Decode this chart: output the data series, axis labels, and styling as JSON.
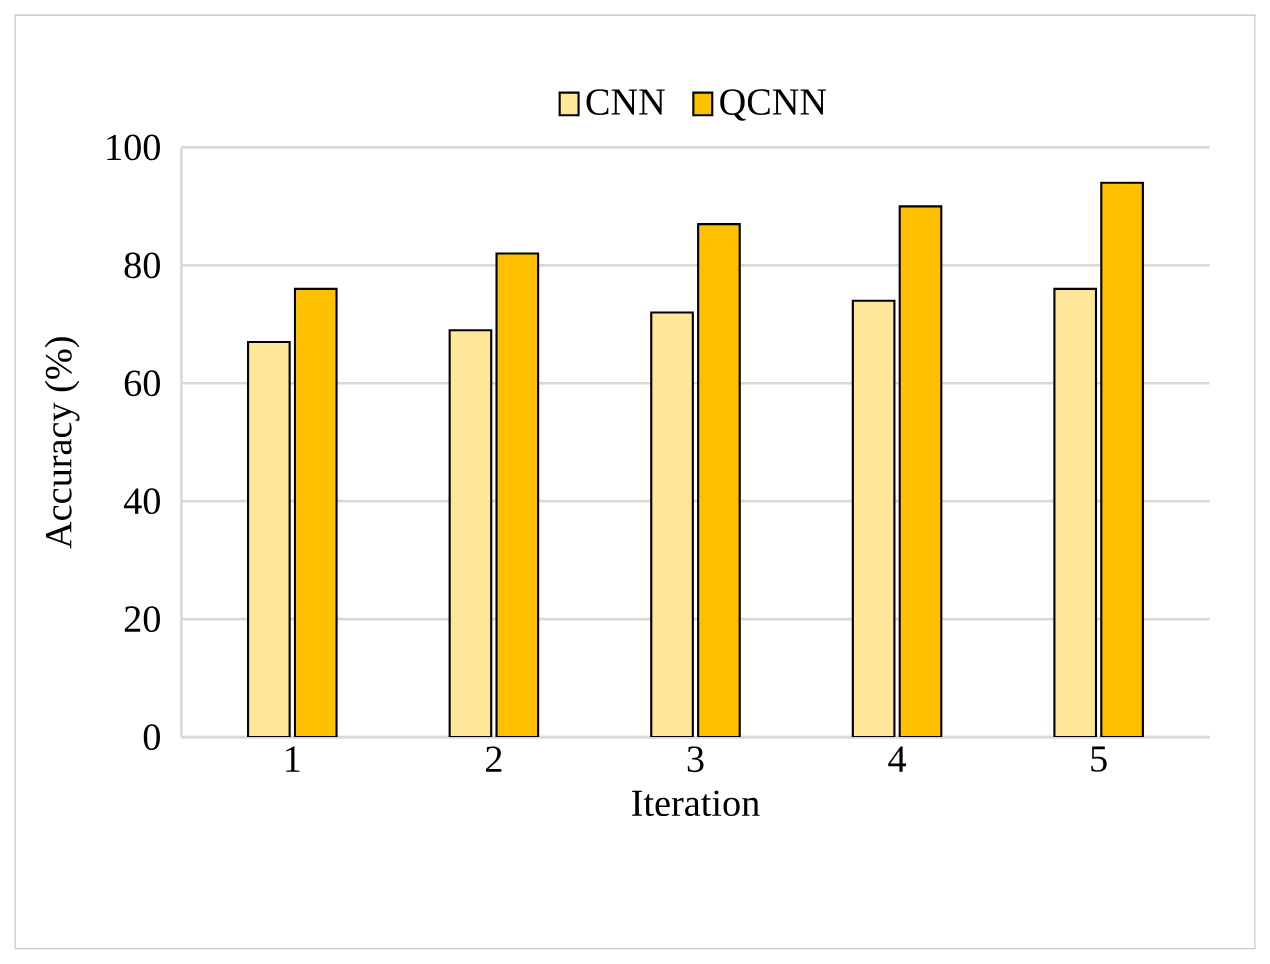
{
  "chart_data": {
    "type": "bar",
    "xlabel": "Iteration",
    "ylabel": "Accuracy (%)",
    "categories": [
      "1",
      "2",
      "3",
      "4",
      "5"
    ],
    "series": [
      {
        "name": "CNN",
        "color": "#ffe699",
        "values": [
          67,
          69,
          72,
          74,
          76
        ]
      },
      {
        "name": "QCNN",
        "color": "#ffc000",
        "values": [
          76,
          82,
          87,
          90,
          94
        ]
      }
    ],
    "ylim": [
      0,
      100
    ],
    "yticks": [
      0,
      20,
      40,
      60,
      80,
      100
    ],
    "grid": "y",
    "legend": "top"
  }
}
